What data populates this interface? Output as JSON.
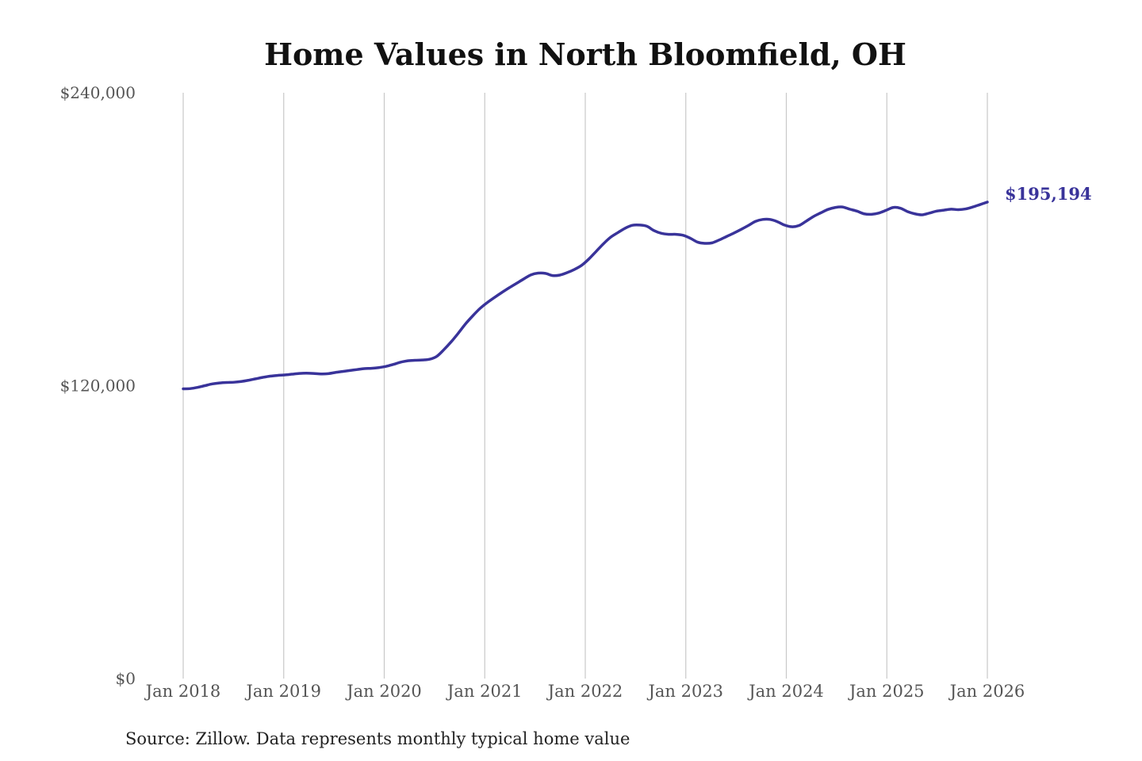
{
  "colors": {
    "series": "#39339a",
    "grid": "#c8c8c8",
    "title": "#111111",
    "tick": "#555555"
  },
  "chart_data": {
    "type": "line",
    "title": "Home Values in North Bloomfield, OH",
    "xlabel": "",
    "ylabel": "",
    "x_ticks": [
      "Jan 2018",
      "Jan 2019",
      "Jan 2020",
      "Jan 2021",
      "Jan 2022",
      "Jan 2023",
      "Jan 2024",
      "Jan 2025",
      "Jan 2026"
    ],
    "y_ticks": [
      "$0",
      "$120,000",
      "$240,000"
    ],
    "ylim": [
      0,
      240000
    ],
    "grid": "vertical",
    "end_label": "$195,194",
    "source": "Source: Zillow. Data represents monthly typical home value",
    "series": [
      {
        "x_start": "Jan 2018",
        "frequency": "monthly",
        "values": [
          118700,
          118800,
          119300,
          120000,
          120700,
          121100,
          121300,
          121400,
          121700,
          122200,
          122800,
          123400,
          123900,
          124200,
          124400,
          124700,
          125000,
          125100,
          125000,
          124800,
          124900,
          125400,
          125800,
          126200,
          126600,
          127000,
          127100,
          127400,
          127900,
          128700,
          129600,
          130200,
          130400,
          130500,
          130800,
          132000,
          134800,
          138000,
          141600,
          145400,
          148700,
          151700,
          154100,
          156200,
          158200,
          160100,
          161900,
          163700,
          165400,
          166100,
          166000,
          165100,
          165300,
          166300,
          167600,
          169300,
          171900,
          175000,
          178100,
          180800,
          182700,
          184500,
          185700,
          185800,
          185300,
          183500,
          182400,
          182000,
          182000,
          181600,
          180400,
          178800,
          178300,
          178500,
          179700,
          181100,
          182500,
          184000,
          185600,
          187300,
          188100,
          188100,
          187200,
          185800,
          185100,
          185600,
          187400,
          189300,
          190800,
          192200,
          193000,
          193200,
          192300,
          191500,
          190400,
          190200,
          190700,
          191800,
          193000,
          192700,
          191300,
          190400,
          190000,
          190700,
          191500,
          191900,
          192300,
          192100,
          192400,
          193200,
          194200,
          195194
        ]
      }
    ]
  }
}
